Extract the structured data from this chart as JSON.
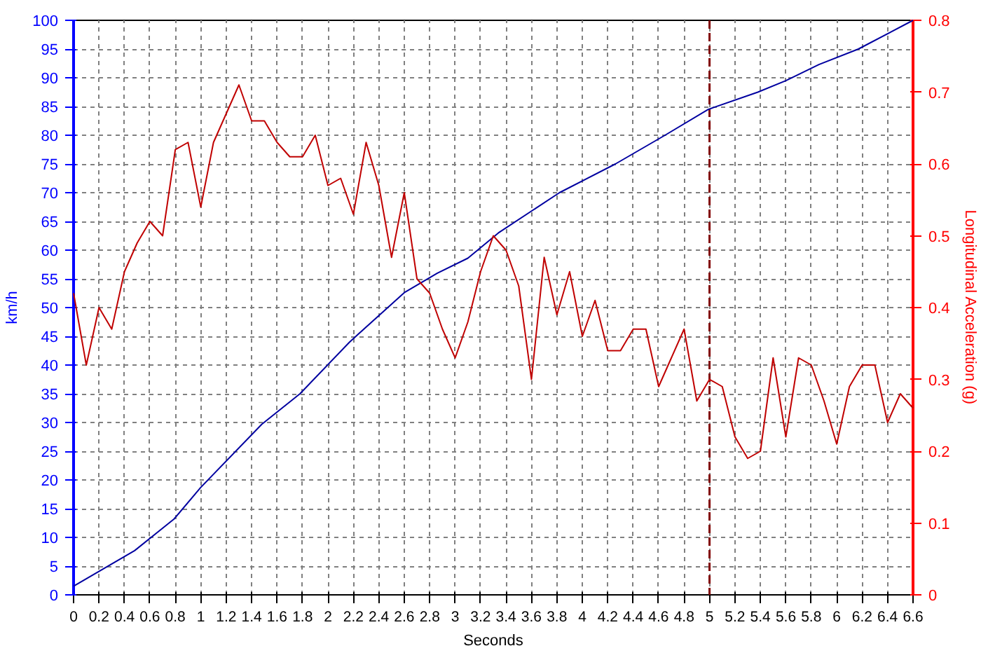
{
  "chart_data": {
    "type": "line",
    "xlabel": "Seconds",
    "ylabel": "km/h",
    "y2label": "Longitudinal Acceleration (g)",
    "xlim": [
      0,
      6.6
    ],
    "xticks": [
      0,
      0.2,
      0.4,
      0.6,
      0.8,
      1,
      1.2,
      1.4,
      1.6,
      1.8,
      2,
      2.2,
      2.4,
      2.6,
      2.8,
      3,
      3.2,
      3.4,
      3.6,
      3.8,
      4,
      4.2,
      4.4,
      4.6,
      4.8,
      5,
      5.2,
      5.4,
      5.6,
      5.8,
      6,
      6.2,
      6.4,
      6.6
    ],
    "ylim": [
      0,
      100
    ],
    "yticks": [
      0,
      5,
      10,
      15,
      20,
      25,
      30,
      35,
      40,
      45,
      50,
      55,
      60,
      65,
      70,
      75,
      80,
      85,
      90,
      95,
      100
    ],
    "y2lim": [
      0,
      0.8
    ],
    "y2ticks": [
      0,
      0.1,
      0.2,
      0.3,
      0.4,
      0.5,
      0.6,
      0.7,
      0.8
    ],
    "grid": true,
    "line_style": "solid",
    "series": [
      {
        "color": "#0000a0",
        "x": [
          0,
          0.48,
          0.79,
          1.0,
          1.48,
          1.78,
          2.17,
          2.6,
          2.86,
          3.1,
          3.34,
          3.82,
          4.26,
          4.65,
          4.99,
          5.38,
          5.6,
          5.86,
          6.17,
          6.6
        ],
        "values": [
          1.5,
          7.7,
          13.2,
          18.7,
          29.7,
          35,
          44,
          52.6,
          56,
          58.6,
          63,
          70,
          75,
          80,
          84.5,
          87.5,
          89.5,
          92.3,
          95,
          100
        ]
      },
      {
        "color": "#c00000",
        "axis": "y2",
        "x": [
          0,
          0.1,
          0.2,
          0.3,
          0.4,
          0.5,
          0.6,
          0.7,
          0.8,
          0.9,
          1,
          1.1,
          1.2,
          1.3,
          1.4,
          1.5,
          1.6,
          1.7,
          1.8,
          1.9,
          2,
          2.1,
          2.2,
          2.3,
          2.4,
          2.5,
          2.6,
          2.7,
          2.8,
          2.9,
          3,
          3.1,
          3.2,
          3.3,
          3.4,
          3.5,
          3.6,
          3.7,
          3.8,
          3.9,
          4,
          4.1,
          4.2,
          4.3,
          4.4,
          4.5,
          4.6,
          4.7,
          4.8,
          4.9,
          5,
          5.1,
          5.2,
          5.3,
          5.4,
          5.5,
          5.6,
          5.7,
          5.8,
          5.9,
          6,
          6.1,
          6.2,
          6.3,
          6.4,
          6.5,
          6.6
        ],
        "values": [
          0.42,
          0.32,
          0.4,
          0.37,
          0.45,
          0.49,
          0.52,
          0.5,
          0.62,
          0.63,
          0.54,
          0.63,
          0.67,
          0.71,
          0.66,
          0.66,
          0.63,
          0.61,
          0.61,
          0.64,
          0.57,
          0.58,
          0.53,
          0.63,
          0.57,
          0.47,
          0.56,
          0.44,
          0.42,
          0.37,
          0.33,
          0.38,
          0.45,
          0.5,
          0.48,
          0.43,
          0.3,
          0.47,
          0.39,
          0.45,
          0.36,
          0.41,
          0.34,
          0.34,
          0.37,
          0.37,
          0.29,
          0.33,
          0.37,
          0.27,
          0.3,
          0.29,
          0.22,
          0.19,
          0.2,
          0.33,
          0.22,
          0.33,
          0.32,
          0.27,
          0.21,
          0.29,
          0.32,
          0.32,
          0.24,
          0.28,
          0.26
        ]
      }
    ],
    "ref_lines": [
      {
        "axis": "x",
        "value": 5,
        "color": "#800000",
        "line_style": "dashed"
      }
    ]
  }
}
